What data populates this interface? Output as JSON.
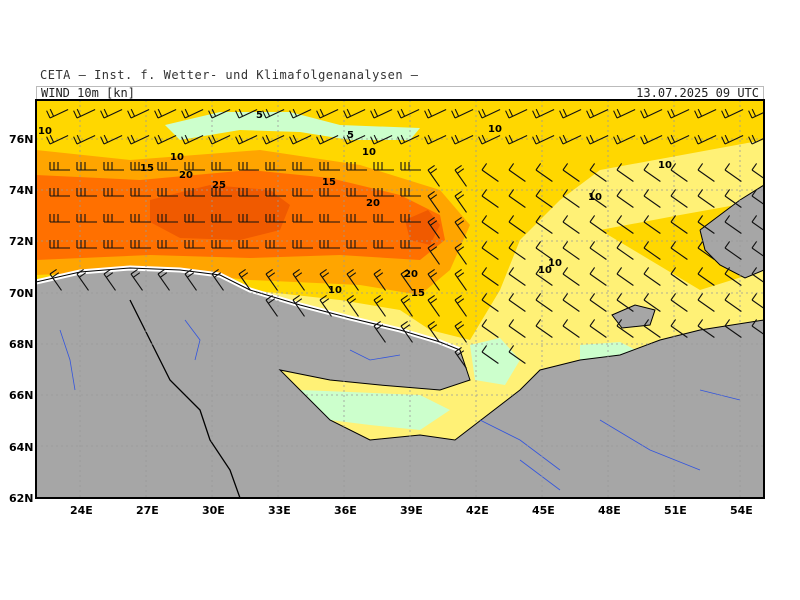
{
  "header": {
    "institute": "CETA – Inst. f. Wetter- und Klimafolgenanalysen –",
    "product": "WIND 10m [kn]",
    "valid_time": "13.07.2025 09 UTC"
  },
  "map": {
    "lon_range": [
      22,
      55
    ],
    "lat_range": [
      62,
      77.5
    ],
    "lon_ticks": [
      "24E",
      "27E",
      "30E",
      "33E",
      "36E",
      "39E",
      "42E",
      "45E",
      "48E",
      "51E",
      "54E"
    ],
    "lat_ticks": [
      "62N",
      "64N",
      "66N",
      "68N",
      "70N",
      "72N",
      "74N",
      "76N"
    ],
    "colors": {
      "land": "#a6a6a6",
      "calm": "#ccffcc",
      "light": "#fff176",
      "moderate": "#ffd700",
      "fresh": "#ffa500",
      "strong": "#ff7000",
      "gale": "#f05a00",
      "coast": "#000000",
      "rivers": "#3355dd",
      "grid": "#999999"
    },
    "contour_labels": [
      "5",
      "5",
      "10",
      "10",
      "10",
      "10",
      "10",
      "10",
      "10",
      "10",
      "10",
      "15",
      "15",
      "15",
      "20",
      "20",
      "20",
      "25"
    ]
  }
}
